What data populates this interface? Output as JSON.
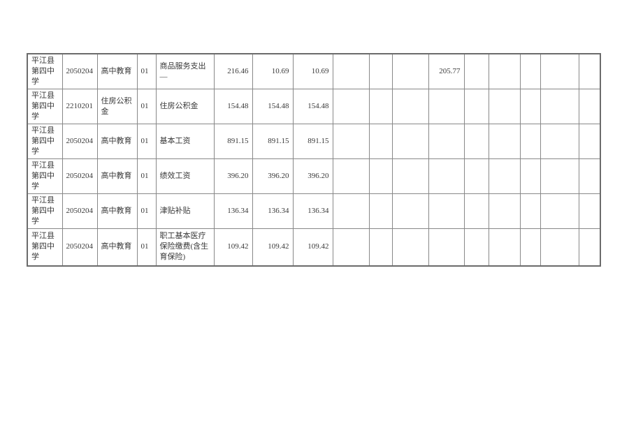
{
  "page": {
    "background_color": "#ffffff"
  },
  "table": {
    "grid_color": "#888888",
    "outer_border_color": "#6b6b6b",
    "text_color": "#383838",
    "rows": [
      {
        "school_name": "平江县第四中学",
        "function_code": "2050204",
        "function_name": "高中教育",
        "economic_code": "01",
        "item_name": "商品服务支出—",
        "amounts": [
          "216.46",
          "10.69",
          "10.69",
          "",
          "",
          "",
          "205.77",
          "",
          "",
          "",
          "",
          ""
        ]
      },
      {
        "school_name": "平江县第四中学",
        "function_code": "2210201",
        "function_name": "住房公积金",
        "economic_code": "01",
        "item_name": "住房公积金",
        "amounts": [
          "154.48",
          "154.48",
          "154.48",
          "",
          "",
          "",
          "",
          "",
          "",
          "",
          "",
          ""
        ]
      },
      {
        "school_name": "平江县第四中学",
        "function_code": "2050204",
        "function_name": "高中教育",
        "economic_code": "01",
        "item_name": "基本工资",
        "amounts": [
          "891.15",
          "891.15",
          "891.15",
          "",
          "",
          "",
          "",
          "",
          "",
          "",
          "",
          ""
        ]
      },
      {
        "school_name": "平江县第四中学",
        "function_code": "2050204",
        "function_name": "高中教育",
        "economic_code": "01",
        "item_name": "绩效工资",
        "amounts": [
          "396.20",
          "396.20",
          "396.20",
          "",
          "",
          "",
          "",
          "",
          "",
          "",
          "",
          ""
        ]
      },
      {
        "school_name": "平江县第四中学",
        "function_code": "2050204",
        "function_name": "高中教育",
        "economic_code": "01",
        "item_name": "津贴补贴",
        "amounts": [
          "136.34",
          "136.34",
          "136.34",
          "",
          "",
          "",
          "",
          "",
          "",
          "",
          "",
          ""
        ]
      },
      {
        "school_name": "平江县第四中学",
        "function_code": "2050204",
        "function_name": "高中教育",
        "economic_code": "01",
        "item_name": "职工基本医疗保险缴费(含生育保险)",
        "amounts": [
          "109.42",
          "109.42",
          "109.42",
          "",
          "",
          "",
          "",
          "",
          "",
          "",
          "",
          ""
        ]
      }
    ]
  }
}
